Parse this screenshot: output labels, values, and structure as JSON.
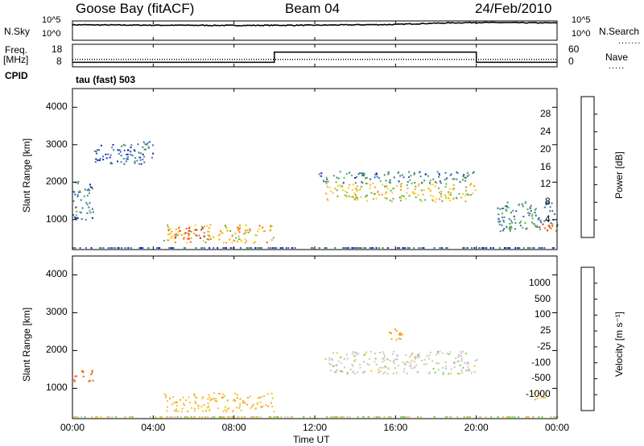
{
  "header": {
    "station": "Goose Bay (fitACF)",
    "beam": "Beam 04",
    "date": "24/Feb/2010"
  },
  "side_labels": {
    "nsky": "N.Sky",
    "nsearch": "N.Search",
    "freq": "Freq.",
    "mhz": "[MHz]",
    "nave": "Nave",
    "cpid": "CPID",
    "cpid_value": "tau (fast) 503"
  },
  "noise_axis": {
    "left_top": "10^5",
    "left_bottom": "10^0",
    "right_top": "10^5",
    "right_bottom": "10^0"
  },
  "freq_axis": {
    "left_top": "18",
    "left_bottom": "8",
    "right_top": "60",
    "right_bottom": "0"
  },
  "colors": {
    "trace": "#000000",
    "frame": "#000000",
    "gray_flag": "#c8c8c0"
  },
  "chart_data": [
    {
      "type": "line",
      "panel": "noise",
      "series": [
        {
          "name": "N.Sky",
          "x": [
            "00:00",
            "04:00",
            "08:00",
            "12:00",
            "16:00",
            "20:00",
            "24:00"
          ],
          "values": [
            10000,
            8000,
            7000,
            8000,
            12000,
            40000,
            30000
          ]
        },
        {
          "name": "N.Search",
          "x": [],
          "values": []
        }
      ],
      "yscale": "log"
    },
    {
      "type": "line",
      "panel": "frequency",
      "series": [
        {
          "name": "Freq.",
          "x": [
            "00:00",
            "10:00",
            "10:00",
            "20:00",
            "20:00",
            "24:00"
          ],
          "values": [
            10,
            10,
            14.5,
            14.5,
            10,
            10
          ]
        },
        {
          "name": "Nave",
          "x": [
            "00:00",
            "24:00"
          ],
          "values": [
            12,
            12
          ]
        }
      ],
      "ylim": [
        8,
        18
      ]
    },
    {
      "type": "heatmap",
      "panel": "power",
      "xlabel": "",
      "ylabel": "Slant Range [km]",
      "ylim": [
        200,
        4500
      ],
      "yticks": [
        "1000",
        "2000",
        "3000",
        "4000"
      ],
      "xticks": [
        "00:00",
        "04:00",
        "08:00",
        "12:00",
        "16:00",
        "20:00",
        "00:00"
      ],
      "colorbar": {
        "label": "Power [dB]",
        "ticks": [
          "4",
          "8",
          "12",
          "16",
          "20",
          "24",
          "28"
        ],
        "colors": [
          "#1a1acc",
          "#3366bb",
          "#4a8a6a",
          "#59b84a",
          "#f0d020",
          "#f5a21a",
          "#f06010",
          "#e81010"
        ]
      },
      "regions": [
        {
          "t": [
            0.0,
            1.0
          ],
          "r": [
            1000,
            2100
          ],
          "level": 8
        },
        {
          "t": [
            1.0,
            4.0
          ],
          "r": [
            2500,
            3100
          ],
          "level": 6
        },
        {
          "t": [
            4.5,
            10.0
          ],
          "r": [
            400,
            900
          ],
          "level": 20
        },
        {
          "t": [
            5.0,
            6.5
          ],
          "r": [
            500,
            800
          ],
          "level": 28
        },
        {
          "t": [
            12.5,
            20.0
          ],
          "r": [
            1500,
            2000
          ],
          "level": 18
        },
        {
          "t": [
            12.0,
            20.0
          ],
          "r": [
            2000,
            2300
          ],
          "level": 8
        },
        {
          "t": [
            21.0,
            24.0
          ],
          "r": [
            700,
            1500
          ],
          "level": 10
        },
        {
          "t": [
            22.8,
            23.8
          ],
          "r": [
            700,
            900
          ],
          "level": 26
        }
      ]
    },
    {
      "type": "heatmap",
      "panel": "velocity",
      "xlabel": "Time UT",
      "ylabel": "Slant Range [km]",
      "ylim": [
        200,
        4500
      ],
      "yticks": [
        "1000",
        "2000",
        "3000",
        "4000"
      ],
      "xticks": [
        "00:00",
        "04:00",
        "08:00",
        "12:00",
        "16:00",
        "20:00",
        "00:00"
      ],
      "colorbar": {
        "label": "Velocity [m s⁻¹]",
        "ticks": [
          "1000",
          "500",
          "100",
          "25",
          "-25",
          "-100",
          "-500",
          "-1000"
        ],
        "colors": [
          "#1a1acc",
          "#2a5ab8",
          "#3a9a4a",
          "#78d040",
          "#c8c8c0",
          "#f5c030",
          "#f5a21a",
          "#f06010",
          "#e81010"
        ]
      },
      "regions": [
        {
          "t": [
            0.0,
            1.0
          ],
          "r": [
            1200,
            1500
          ],
          "level": -800
        },
        {
          "t": [
            4.5,
            10.0
          ],
          "r": [
            400,
            900
          ],
          "level": -80
        },
        {
          "t": [
            12.5,
            20.0
          ],
          "r": [
            1400,
            2000
          ],
          "level": 0
        },
        {
          "t": [
            15.5,
            16.5
          ],
          "r": [
            2300,
            2600
          ],
          "level": -300
        },
        {
          "t": [
            22.8,
            23.8
          ],
          "r": [
            700,
            900
          ],
          "level": -80
        }
      ]
    }
  ]
}
